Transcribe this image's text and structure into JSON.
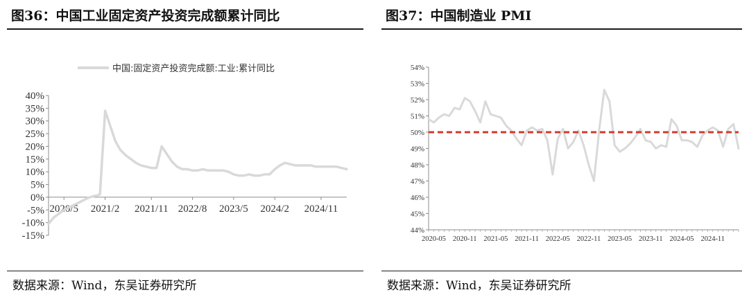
{
  "left_panel": {
    "title": "图36：中国工业固定资产投资完成额累计同比",
    "source": "数据来源：Wind，东吴证券研究所"
  },
  "right_panel": {
    "title": "图37：中国制造业 PMI",
    "source": "数据来源：Wind，东吴证券研究所"
  },
  "colors": {
    "series": "#d9d9d9",
    "reference": "#d03a2c",
    "axis": "#8c8c8c",
    "text": "#1a1a1a"
  },
  "chart_data": [
    {
      "type": "line",
      "legend": {
        "position": "top",
        "entries": [
          "中国:固定资产投资完成额:工业:累计同比"
        ]
      },
      "series": [
        {
          "name": "中国:固定资产投资完成额:工业:累计同比",
          "x": [
            "2020/2",
            "2020/3",
            "2020/4",
            "2020/5",
            "2020/6",
            "2020/7",
            "2020/8",
            "2020/9",
            "2020/10",
            "2020/11",
            "2020/12",
            "2021/2",
            "2021/3",
            "2021/4",
            "2021/5",
            "2021/6",
            "2021/7",
            "2021/8",
            "2021/9",
            "2021/10",
            "2021/11",
            "2021/12",
            "2022/2",
            "2022/3",
            "2022/4",
            "2022/5",
            "2022/6",
            "2022/7",
            "2022/8",
            "2022/9",
            "2022/10",
            "2022/11",
            "2022/12",
            "2023/2",
            "2023/3",
            "2023/4",
            "2023/5",
            "2023/6",
            "2023/7",
            "2023/8",
            "2023/9",
            "2023/10",
            "2023/11",
            "2023/12",
            "2024/2",
            "2024/3",
            "2024/4",
            "2024/5",
            "2024/6",
            "2024/7",
            "2024/8",
            "2024/9",
            "2024/10",
            "2024/11",
            "2024/12",
            "2025/2",
            "2025/3",
            "2025/4",
            "2025/5"
          ],
          "values": [
            -10.5,
            -8.0,
            -6.5,
            -5.0,
            -4.0,
            -3.0,
            -2.0,
            -1.0,
            0.0,
            0.5,
            1.0,
            34.0,
            28.0,
            22.0,
            18.5,
            16.5,
            15.0,
            13.5,
            12.5,
            12.0,
            11.5,
            11.5,
            20.0,
            17.0,
            14.0,
            12.0,
            11.0,
            11.0,
            10.5,
            10.5,
            11.0,
            10.5,
            10.5,
            10.5,
            10.5,
            10.0,
            9.0,
            8.5,
            8.5,
            9.0,
            8.5,
            8.5,
            9.0,
            9.0,
            11.0,
            12.5,
            13.5,
            13.0,
            12.5,
            12.5,
            12.5,
            12.5,
            12.0,
            12.0,
            12.0,
            12.0,
            12.0,
            11.5,
            11.0
          ]
        }
      ],
      "y_ticks": [
        "40%",
        "35%",
        "30%",
        "25%",
        "20%",
        "15%",
        "10%",
        "5%",
        "0%",
        "-5%",
        "-10%",
        "-15%"
      ],
      "ylim": [
        -15,
        40
      ],
      "x_ticks": [
        "2020/5",
        "2021/2",
        "2021/11",
        "2022/8",
        "2023/5",
        "2024/2",
        "2024/11"
      ],
      "grid": false
    },
    {
      "type": "line",
      "legend": {
        "position": "none",
        "entries": []
      },
      "series": [
        {
          "x": [
            "2020-04",
            "2020-05",
            "2020-06",
            "2020-07",
            "2020-08",
            "2020-09",
            "2020-10",
            "2020-11",
            "2020-12",
            "2021-01",
            "2021-02",
            "2021-03",
            "2021-04",
            "2021-05",
            "2021-06",
            "2021-07",
            "2021-08",
            "2021-09",
            "2021-10",
            "2021-11",
            "2021-12",
            "2022-01",
            "2022-02",
            "2022-03",
            "2022-04",
            "2022-05",
            "2022-06",
            "2022-07",
            "2022-08",
            "2022-09",
            "2022-10",
            "2022-11",
            "2022-12",
            "2023-01",
            "2023-02",
            "2023-03",
            "2023-04",
            "2023-05",
            "2023-06",
            "2023-07",
            "2023-08",
            "2023-09",
            "2023-10",
            "2023-11",
            "2023-12",
            "2024-01",
            "2024-02",
            "2024-03",
            "2024-04",
            "2024-05",
            "2024-06",
            "2024-07",
            "2024-08",
            "2024-09",
            "2024-10",
            "2024-11",
            "2024-12",
            "2025-01",
            "2025-02",
            "2025-03",
            "2025-04"
          ],
          "values": [
            50.8,
            50.6,
            50.9,
            51.1,
            51.0,
            51.5,
            51.4,
            52.1,
            51.9,
            51.3,
            50.6,
            51.9,
            51.1,
            51.0,
            50.9,
            50.4,
            50.1,
            49.6,
            49.2,
            50.1,
            50.3,
            50.1,
            50.2,
            49.5,
            47.4,
            49.6,
            50.2,
            49.0,
            49.4,
            50.1,
            49.2,
            48.0,
            47.0,
            50.1,
            52.6,
            51.9,
            49.2,
            48.8,
            49.0,
            49.3,
            49.7,
            50.2,
            49.5,
            49.4,
            49.0,
            49.2,
            49.1,
            50.8,
            50.4,
            49.5,
            49.5,
            49.4,
            49.1,
            49.8,
            50.1,
            50.3,
            50.1,
            49.1,
            50.2,
            50.5,
            49.0
          ]
        }
      ],
      "reference_line": {
        "value": 50,
        "style": "dashed"
      },
      "y_ticks": [
        "54%",
        "53%",
        "52%",
        "51%",
        "50%",
        "49%",
        "48%",
        "47%",
        "46%",
        "45%",
        "44%"
      ],
      "ylim": [
        44,
        54
      ],
      "x_ticks": [
        "2020-05",
        "2020-11",
        "2021-05",
        "2021-11",
        "2022-05",
        "2022-11",
        "2023-05",
        "2023-11",
        "2024-05",
        "2024-11"
      ],
      "grid": false
    }
  ]
}
